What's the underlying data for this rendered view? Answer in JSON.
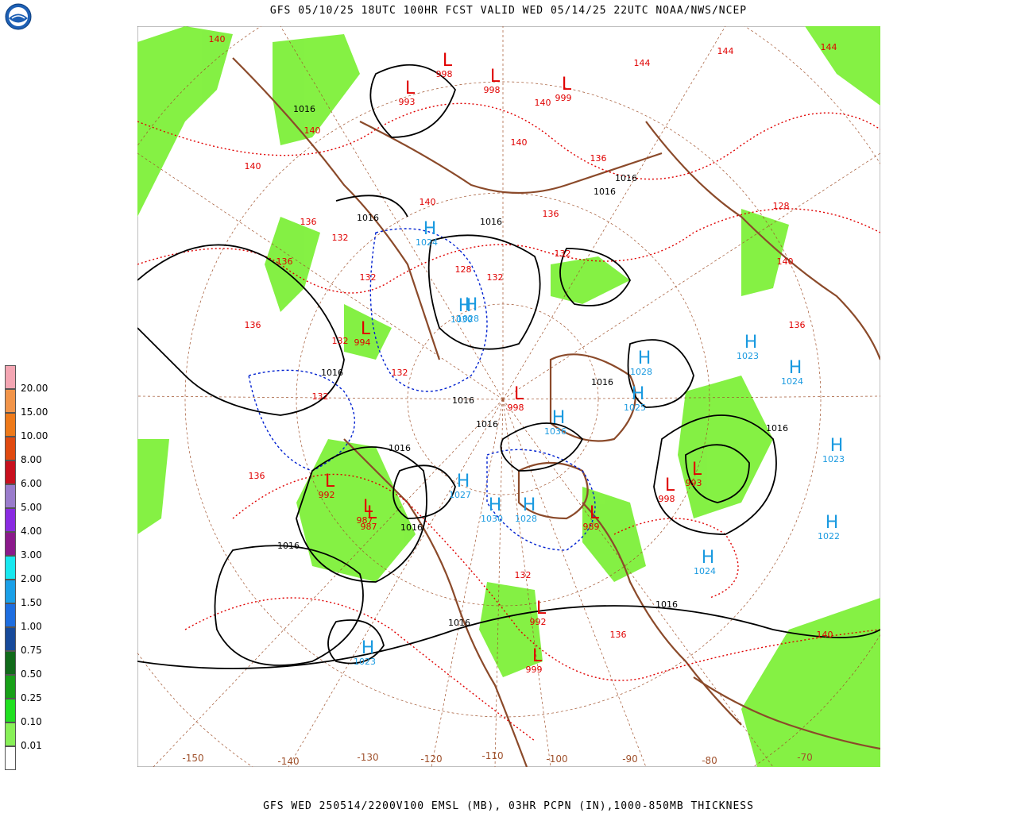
{
  "header": {
    "title": "GFS 05/10/25 18UTC 100HR FCST VALID WED 05/14/25 22UTC NOAA/NWS/NCEP",
    "logo_text": "NOAA"
  },
  "footer": {
    "caption": "GFS WED 250514/2200V100 EMSL (MB), 03HR PCPN (IN),1000-850MB THICKNESS"
  },
  "legend": {
    "items": [
      {
        "label": "20.00",
        "color": "#f4a6b3"
      },
      {
        "label": "15.00",
        "color": "#f2954a"
      },
      {
        "label": "10.00",
        "color": "#ee7a1a"
      },
      {
        "label": "8.00",
        "color": "#e04a10"
      },
      {
        "label": "6.00",
        "color": "#c8101e"
      },
      {
        "label": "5.00",
        "color": "#9a7ccc"
      },
      {
        "label": "4.00",
        "color": "#8a2be2"
      },
      {
        "label": "3.00",
        "color": "#8b1a8b"
      },
      {
        "label": "2.00",
        "color": "#18e8f0"
      },
      {
        "label": "1.50",
        "color": "#1aa0e8"
      },
      {
        "label": "1.00",
        "color": "#1e6ee0"
      },
      {
        "label": "0.75",
        "color": "#174a9a"
      },
      {
        "label": "0.50",
        "color": "#116b1a"
      },
      {
        "label": "0.25",
        "color": "#18a018"
      },
      {
        "label": "0.10",
        "color": "#20e020"
      },
      {
        "label": "0.01",
        "color": "#88f058"
      },
      {
        "label": "",
        "color": "#ffffff"
      }
    ]
  },
  "map": {
    "colors": {
      "highs": "#1a9ae0",
      "lows": "#e00000",
      "isobars": "#000000",
      "thickness_warm": "#e00000",
      "thickness_cold": "#0020d0",
      "coastline": "#8b4a2a",
      "graticule": "#a0522d",
      "precip": "#7ef03a"
    },
    "longitude_labels": [
      "-150",
      "-140",
      "-130",
      "-120",
      "-110",
      "-100",
      "-90",
      "-80",
      "-70"
    ],
    "highs": [
      {
        "label": "H",
        "value": "1024"
      },
      {
        "label": "H",
        "value": "1028"
      },
      {
        "label": "H",
        "value": "1030"
      },
      {
        "label": "H",
        "value": "1028"
      },
      {
        "label": "H",
        "value": "1025"
      },
      {
        "label": "H",
        "value": "1023"
      },
      {
        "label": "H",
        "value": "1024"
      },
      {
        "label": "H",
        "value": "1023"
      },
      {
        "label": "H",
        "value": "1022"
      },
      {
        "label": "H",
        "value": "1024"
      },
      {
        "label": "H",
        "value": "1027"
      },
      {
        "label": "H",
        "value": "1030"
      },
      {
        "label": "H",
        "value": "1036"
      },
      {
        "label": "H",
        "value": "1028"
      },
      {
        "label": "H",
        "value": "1023"
      }
    ],
    "lows": [
      {
        "label": "L",
        "value": "993"
      },
      {
        "label": "L",
        "value": "998"
      },
      {
        "label": "L",
        "value": "998"
      },
      {
        "label": "L",
        "value": "994"
      },
      {
        "label": "L",
        "value": "987"
      },
      {
        "label": "L",
        "value": "992"
      },
      {
        "label": "L",
        "value": "987"
      },
      {
        "label": "L",
        "value": "999"
      },
      {
        "label": "L",
        "value": "998"
      },
      {
        "label": "L",
        "value": "989"
      },
      {
        "label": "L",
        "value": "992"
      },
      {
        "label": "L",
        "value": "999"
      },
      {
        "label": "L",
        "value": "993"
      },
      {
        "label": "L",
        "value": "998"
      }
    ],
    "isobar_labels": [
      "1016",
      "1016",
      "1016",
      "1016",
      "1016",
      "1016",
      "1016",
      "1016",
      "1016",
      "1016",
      "1016",
      "1016",
      "1016",
      "1016",
      "1016"
    ],
    "thickness_labels": [
      "140",
      "140",
      "140",
      "140",
      "136",
      "136",
      "132",
      "132",
      "132",
      "132",
      "132",
      "136",
      "136",
      "144",
      "144",
      "144",
      "140",
      "140",
      "136",
      "136",
      "132",
      "132",
      "128",
      "128",
      "140",
      "136",
      "136",
      "140",
      "132"
    ]
  }
}
